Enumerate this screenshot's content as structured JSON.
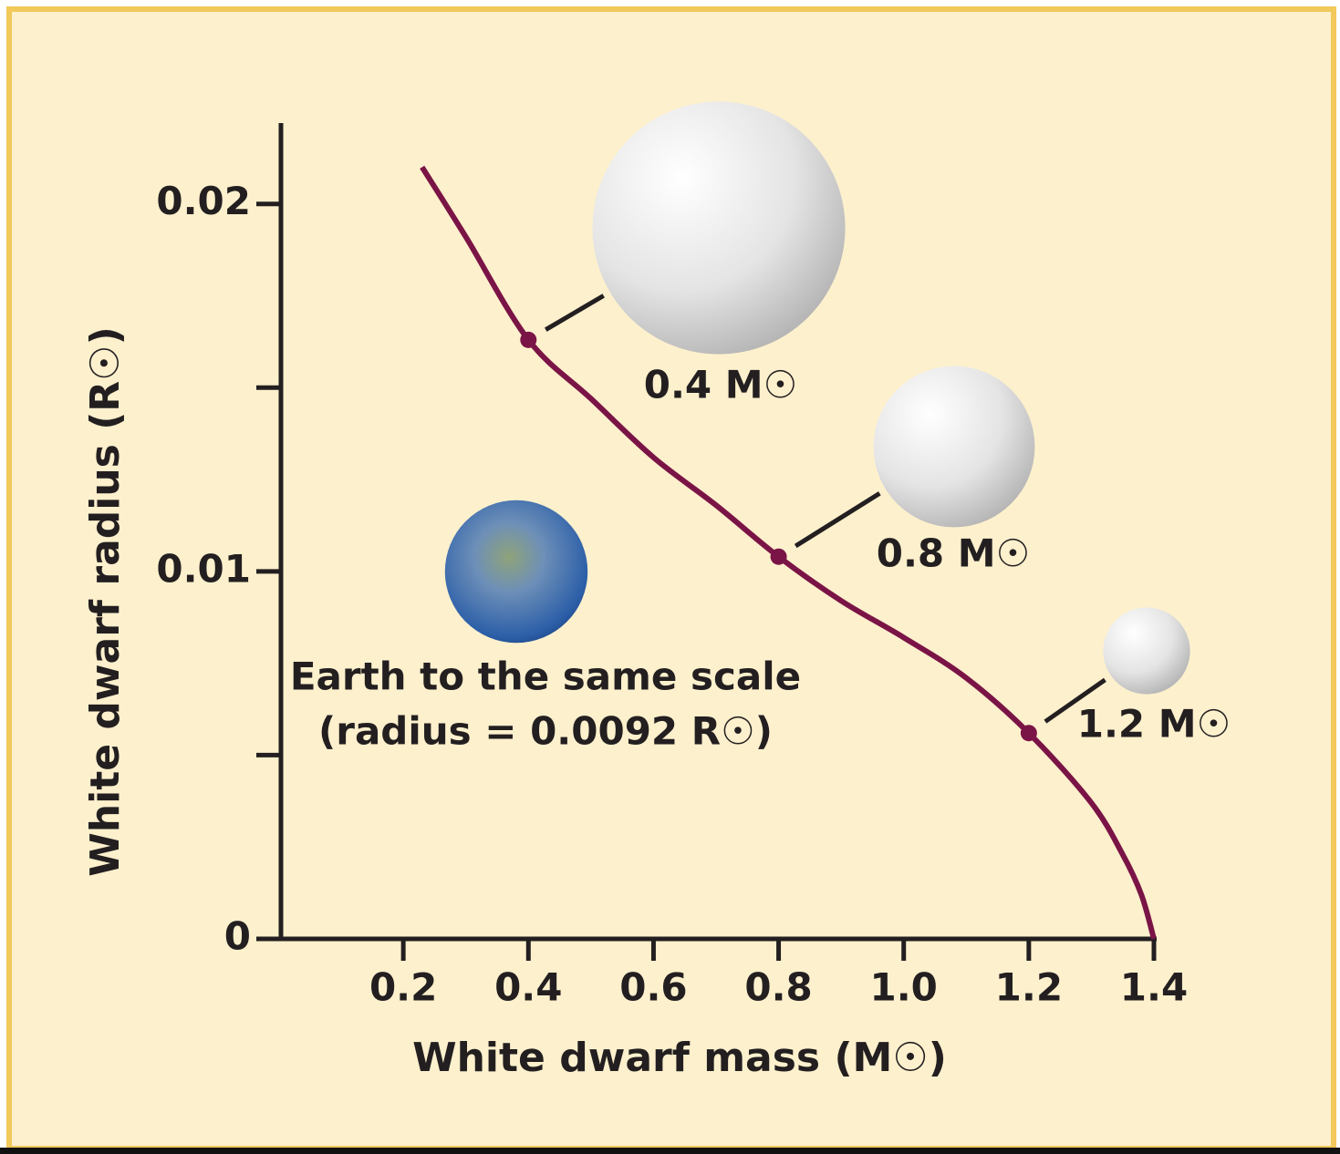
{
  "chart_data": {
    "type": "line",
    "x_label": "White dwarf mass (M☉)",
    "y_label": "White dwarf radius (R☉)",
    "xlim": [
      0,
      1.4
    ],
    "ylim": [
      0,
      0.0222
    ],
    "xticks": [
      0.2,
      0.4,
      0.6,
      0.8,
      {
        "value": 1,
        "label": "1.0"
      },
      1.2,
      1.4
    ],
    "yticks": [
      0,
      0.01,
      0.02
    ],
    "yticks_minor": [
      0.005,
      0.015
    ],
    "color": "#7a1446",
    "x": [
      0.23,
      0.3,
      0.4,
      0.5,
      0.6,
      0.7,
      0.8,
      0.9,
      1.0,
      1.1,
      1.2,
      1.3,
      1.35,
      1.38,
      1.4
    ],
    "values": [
      0.021,
      0.0191,
      0.0163,
      0.0147,
      0.0131,
      0.0118,
      0.0104,
      0.0092,
      0.0082,
      0.0071,
      0.0056,
      0.0037,
      0.0023,
      0.0012,
      0
    ],
    "highlights": [
      {
        "x": 0.4,
        "y": 0.0163,
        "label": "0.4 M☉"
      },
      {
        "x": 0.8,
        "y": 0.0104,
        "label": "0.8 M☉"
      },
      {
        "x": 1.2,
        "y": 0.0056,
        "label": "1.2 M☉"
      }
    ],
    "earth": {
      "radius": 0.0092,
      "label_lines": [
        "Earth to the same scale",
        "(radius = 0.0092 R☉)"
      ]
    }
  }
}
